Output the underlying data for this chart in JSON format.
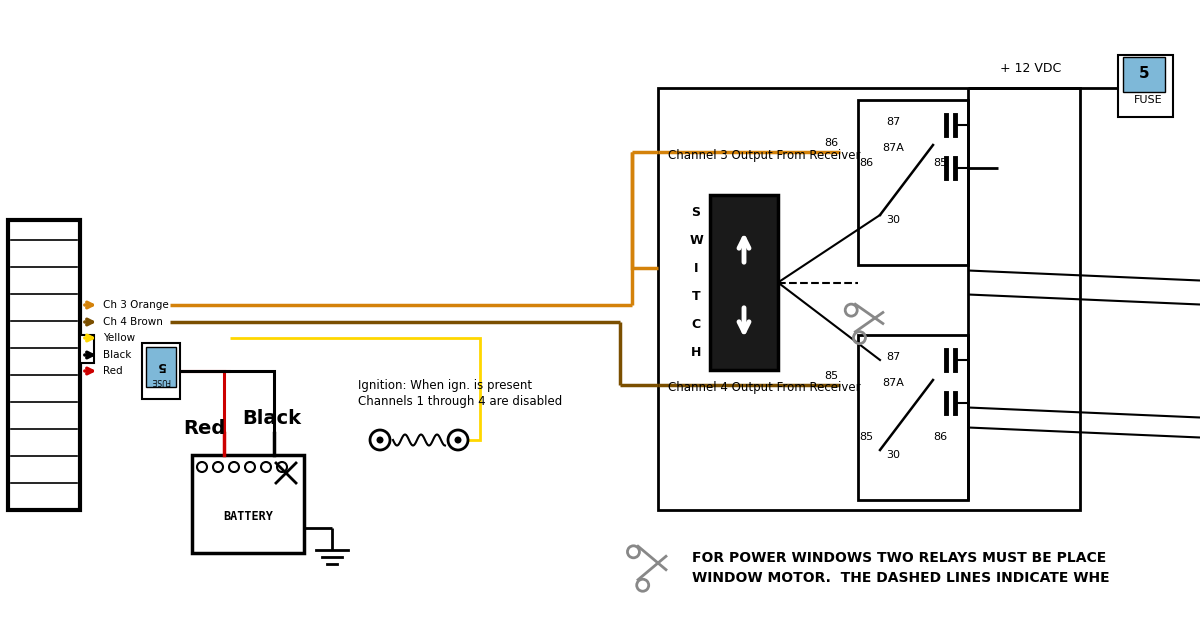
{
  "bg_color": "#ffffff",
  "wire_colors": {
    "orange": "#D4820A",
    "brown": "#7B4F00",
    "yellow": "#FFD700",
    "black": "#000000",
    "red": "#CC0000",
    "gray": "#888888",
    "dark_gray": "#555555"
  },
  "channel3_label": "Channel 3 Output From Receiver",
  "channel4_label": "Channel 4 Output From Receiver",
  "switch_letters": [
    "S",
    "W",
    "I",
    "T",
    "C",
    "H"
  ],
  "ignition_line1": "Ignition: When ign. is present",
  "ignition_line2": "Channels 1 through 4 are disabled",
  "footer_line1": "FOR POWER WINDOWS TWO RELAYS MUST BE PLACE",
  "footer_line2": "WINDOW MOTOR.  THE DASHED LINES INDICATE WHE",
  "vdc_label": "+ 12 VDC",
  "fuse_label": "FUSE",
  "fuse_value": "5",
  "fuse_color": "#7EB8D8",
  "switch_box_color": "#1a1a1a",
  "wire_label_orange": "Ch 3 Orange",
  "wire_label_brown": "Ch 4 Brown",
  "wire_label_yellow": "Yellow",
  "wire_label_black": "Black",
  "wire_label_red": "Red",
  "label_red": "Red",
  "label_black_large": "Black"
}
